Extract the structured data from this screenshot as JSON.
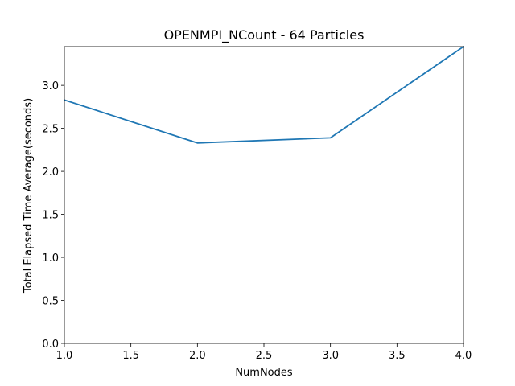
{
  "chart_data": {
    "type": "line",
    "title": "OPENMPI_NCount - 64 Particles",
    "xlabel": "NumNodes",
    "ylabel": "Total Elapsed Time Average(seconds)",
    "x": [
      1.0,
      2.0,
      3.0,
      4.0
    ],
    "series": [
      {
        "values": [
          2.83,
          2.33,
          2.39,
          3.45
        ],
        "color": "#1f77b4"
      }
    ],
    "xlim": [
      1.0,
      4.0
    ],
    "ylim": [
      0.0,
      3.45
    ],
    "xticks": [
      1.0,
      1.5,
      2.0,
      2.5,
      3.0,
      3.5,
      4.0
    ],
    "xtick_labels": [
      "1.0",
      "1.5",
      "2.0",
      "2.5",
      "3.0",
      "3.5",
      "4.0"
    ],
    "yticks": [
      0.0,
      0.5,
      1.0,
      1.5,
      2.0,
      2.5,
      3.0
    ],
    "ytick_labels": [
      "0.0",
      "0.5",
      "1.0",
      "1.5",
      "2.0",
      "2.5",
      "3.0"
    ],
    "grid": false,
    "legend": "none"
  }
}
